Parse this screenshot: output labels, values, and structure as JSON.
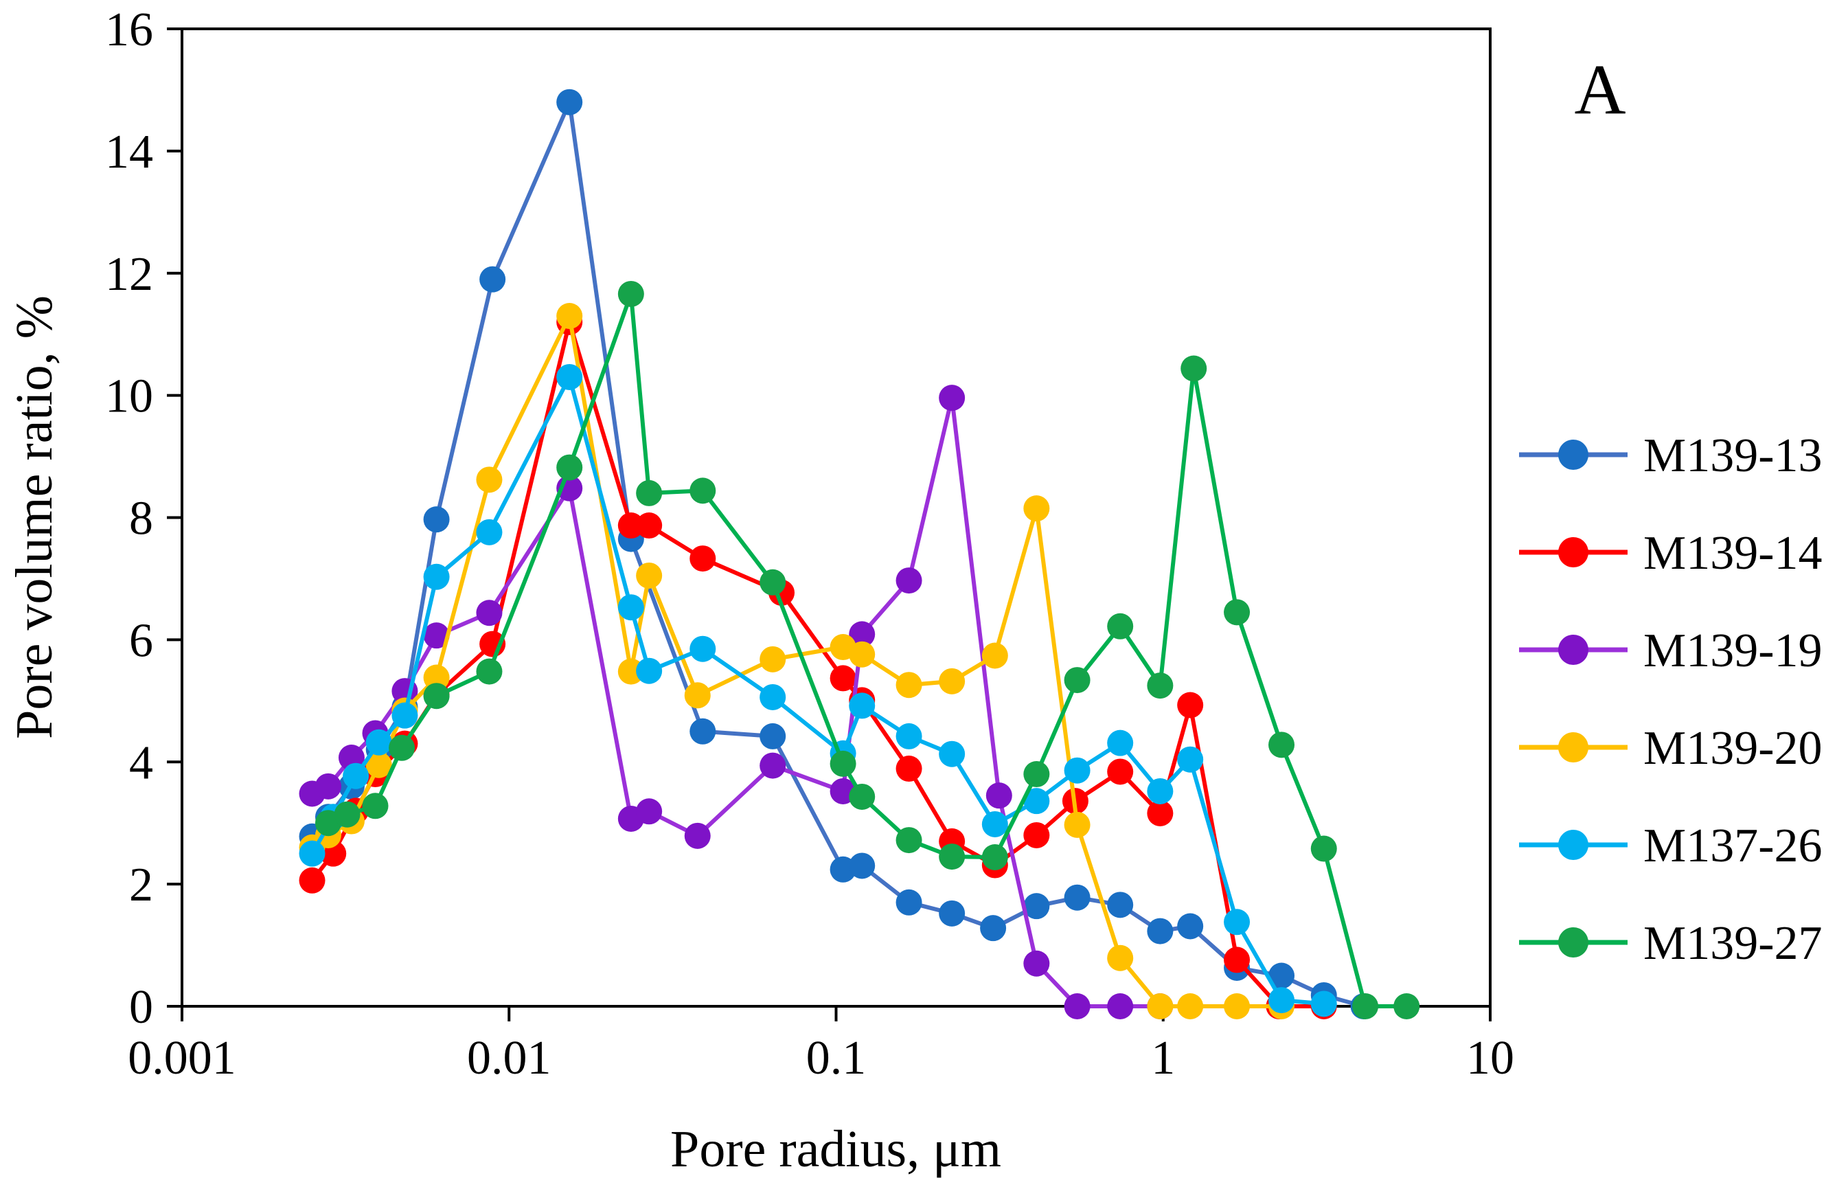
{
  "chart_data": {
    "type": "line",
    "panel_label": "A",
    "xlabel": "Pore radius, μm",
    "ylabel": "Pore volume ratio, %",
    "xscale": "log",
    "xlim": [
      0.001,
      10
    ],
    "ylim": [
      0,
      16
    ],
    "xticks": [
      0.001,
      0.01,
      0.1,
      1,
      10
    ],
    "xtick_labels": [
      "0.001",
      "0.01",
      "0.1",
      "1",
      "10"
    ],
    "yticks": [
      0,
      2,
      4,
      6,
      8,
      10,
      12,
      14,
      16
    ],
    "ytick_labels": [
      "0",
      "2",
      "4",
      "6",
      "8",
      "10",
      "12",
      "14",
      "16"
    ],
    "grid": false,
    "legend_position": "right",
    "series": [
      {
        "name": "M139-13",
        "color": "#1a6fc4",
        "line_color": "#4472c4",
        "x": [
          0.0025,
          0.0028,
          0.0033,
          0.004,
          0.0048,
          0.006,
          0.0089,
          0.0153,
          0.0236,
          0.0391,
          0.064,
          0.105,
          0.12,
          0.167,
          0.226,
          0.302,
          0.41,
          0.546,
          0.739,
          0.979,
          1.21,
          1.68,
          2.3,
          3.1,
          4.1
        ],
        "y": [
          2.78,
          3.1,
          3.6,
          4.2,
          4.9,
          7.97,
          11.9,
          14.8,
          7.65,
          4.5,
          4.42,
          2.24,
          2.3,
          1.7,
          1.52,
          1.28,
          1.64,
          1.78,
          1.66,
          1.23,
          1.31,
          0.63,
          0.5,
          0.18,
          0.0
        ]
      },
      {
        "name": "M139-14",
        "color": "#ff0000",
        "line_color": "#ff0000",
        "x": [
          0.0025,
          0.0029,
          0.0034,
          0.0039,
          0.0048,
          0.006,
          0.0089,
          0.0153,
          0.0236,
          0.0268,
          0.0391,
          0.0681,
          0.105,
          0.12,
          0.167,
          0.226,
          0.306,
          0.41,
          0.539,
          0.739,
          0.979,
          1.21,
          1.68,
          2.26,
          3.1
        ],
        "y": [
          2.06,
          2.5,
          3.2,
          3.8,
          4.3,
          5.1,
          5.93,
          11.2,
          7.87,
          7.87,
          7.33,
          6.77,
          5.37,
          5.01,
          3.89,
          2.7,
          2.31,
          2.8,
          3.36,
          3.84,
          3.16,
          4.93,
          0.76,
          0.0,
          0.0
        ]
      },
      {
        "name": "M139-19",
        "color": "#7e13c7",
        "line_color": "#9b30d9",
        "x": [
          0.0025,
          0.0028,
          0.0033,
          0.0039,
          0.0048,
          0.006,
          0.0087,
          0.0153,
          0.0236,
          0.0268,
          0.0377,
          0.064,
          0.105,
          0.12,
          0.167,
          0.226,
          0.315,
          0.41,
          0.546,
          0.739,
          0.979
        ],
        "y": [
          3.48,
          3.6,
          4.07,
          4.47,
          5.16,
          6.07,
          6.44,
          8.48,
          3.07,
          3.19,
          2.79,
          3.94,
          3.52,
          6.09,
          6.97,
          9.96,
          3.45,
          0.7,
          0.0,
          0.0,
          0.0
        ]
      },
      {
        "name": "M139-20",
        "color": "#ffc000",
        "line_color": "#ffc000",
        "x": [
          0.0025,
          0.0028,
          0.0033,
          0.004,
          0.0048,
          0.006,
          0.0087,
          0.0153,
          0.0236,
          0.0268,
          0.0377,
          0.064,
          0.105,
          0.12,
          0.167,
          0.226,
          0.306,
          0.41,
          0.546,
          0.739,
          0.979,
          1.21,
          1.68,
          2.3
        ],
        "y": [
          2.6,
          2.8,
          3.03,
          3.95,
          4.84,
          5.38,
          8.62,
          11.3,
          5.48,
          7.05,
          5.09,
          5.68,
          5.88,
          5.76,
          5.26,
          5.32,
          5.74,
          8.15,
          2.97,
          0.79,
          0.0,
          0.0,
          0.0,
          0.0
        ]
      },
      {
        "name": "M137-26",
        "color": "#00b0f0",
        "line_color": "#00b0f0",
        "x": [
          0.0025,
          0.0029,
          0.0034,
          0.004,
          0.0048,
          0.006,
          0.0087,
          0.0153,
          0.0236,
          0.0268,
          0.0391,
          0.064,
          0.105,
          0.12,
          0.167,
          0.226,
          0.306,
          0.41,
          0.546,
          0.739,
          0.979,
          1.21,
          1.68,
          2.3,
          3.1
        ],
        "y": [
          2.5,
          3.1,
          3.77,
          4.32,
          4.76,
          7.03,
          7.76,
          10.3,
          6.53,
          5.49,
          5.85,
          5.06,
          4.14,
          4.92,
          4.42,
          4.13,
          2.98,
          3.36,
          3.86,
          4.31,
          3.52,
          4.04,
          1.38,
          0.1,
          0.04
        ]
      },
      {
        "name": "M139-27",
        "color": "#16a34a",
        "line_color": "#00b050",
        "x": [
          0.0028,
          0.0032,
          0.0039,
          0.0047,
          0.006,
          0.0087,
          0.0153,
          0.0236,
          0.0268,
          0.0391,
          0.064,
          0.105,
          0.12,
          0.167,
          0.226,
          0.306,
          0.41,
          0.546,
          0.739,
          0.979,
          1.24,
          1.68,
          2.3,
          3.1,
          4.15,
          5.55
        ],
        "y": [
          3.0,
          3.14,
          3.28,
          4.23,
          5.08,
          5.48,
          8.82,
          11.66,
          8.4,
          8.44,
          6.94,
          3.97,
          3.43,
          2.72,
          2.45,
          2.44,
          3.8,
          5.34,
          6.22,
          5.25,
          10.44,
          6.45,
          4.28,
          2.58,
          0.0,
          0.0
        ]
      }
    ]
  }
}
